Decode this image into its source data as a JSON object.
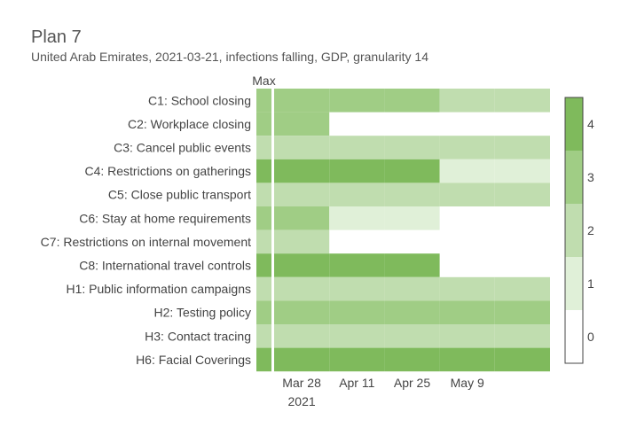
{
  "chart_data": {
    "type": "heatmap",
    "title": "Plan 7",
    "subtitle": "United Arab Emirates, 2021-03-21, infections falling, GDP, granularity 14",
    "max_column_label": "Max",
    "rows": [
      "C1: School closing",
      "C2: Workplace closing",
      "C3: Cancel public events",
      "C4: Restrictions on gatherings",
      "C5: Close public transport",
      "C6: Stay at home requirements",
      "C7: Restrictions on internal movement",
      "C8: International travel controls",
      "H1: Public information campaigns",
      "H2: Testing policy",
      "H3: Contact tracing",
      "H6: Facial Coverings"
    ],
    "max_values": [
      3,
      3,
      2,
      4,
      2,
      3,
      2,
      4,
      2,
      3,
      2,
      4
    ],
    "periods": [
      {
        "start": "2021-03-21",
        "end": "2021-04-04"
      },
      {
        "start": "2021-04-04",
        "end": "2021-04-18"
      },
      {
        "start": "2021-04-18",
        "end": "2021-05-02"
      },
      {
        "start": "2021-05-02",
        "end": "2021-05-16"
      },
      {
        "start": "2021-05-16",
        "end": "2021-05-30"
      }
    ],
    "values": [
      [
        3,
        3,
        3,
        2,
        2
      ],
      [
        3,
        null,
        null,
        null,
        null
      ],
      [
        2,
        2,
        2,
        2,
        2
      ],
      [
        4,
        4,
        4,
        1,
        1
      ],
      [
        2,
        2,
        2,
        2,
        2
      ],
      [
        3,
        1,
        1,
        null,
        null
      ],
      [
        2,
        null,
        null,
        null,
        null
      ],
      [
        4,
        4,
        4,
        null,
        null
      ],
      [
        2,
        2,
        2,
        2,
        2
      ],
      [
        3,
        3,
        3,
        3,
        3
      ],
      [
        2,
        2,
        2,
        2,
        2
      ],
      [
        4,
        4,
        4,
        4,
        4
      ]
    ],
    "x_ticks": [
      {
        "date": "2021-03-28",
        "label": "Mar 28",
        "sublabel": "2021"
      },
      {
        "date": "2021-04-11",
        "label": "Apr 11",
        "sublabel": ""
      },
      {
        "date": "2021-04-25",
        "label": "Apr 25",
        "sublabel": ""
      },
      {
        "date": "2021-05-09",
        "label": "May 9",
        "sublabel": ""
      }
    ],
    "x_range": [
      "2021-03-21",
      "2021-05-30"
    ],
    "colorbar": {
      "ticks": [
        0,
        1,
        2,
        3,
        4
      ],
      "range": [
        -0.5,
        4.5
      ],
      "colors": [
        "#ffffff",
        "#e0f0d8",
        "#c0ddaf",
        "#a0cd85",
        "#7fba5c"
      ]
    }
  }
}
